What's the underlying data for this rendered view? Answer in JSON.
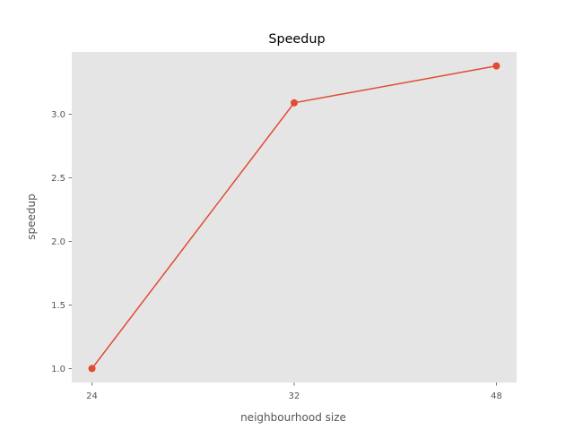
{
  "chart_data": {
    "type": "line",
    "title": "Speedup",
    "xlabel": "neighbourhood size",
    "ylabel": "speedup",
    "categories": [
      "24",
      "32",
      "48"
    ],
    "series": [
      {
        "values": [
          1.0,
          3.09,
          3.38
        ],
        "color": "#E24A33",
        "marker": "circle"
      }
    ],
    "ylim": [
      0.89,
      3.49
    ],
    "yticks": [
      1.0,
      1.5,
      2.0,
      2.5,
      3.0
    ],
    "ytick_labels": [
      "1.0",
      "1.5",
      "2.0",
      "2.5",
      "3.0"
    ],
    "grid": false,
    "plot_background": "#E5E5E5"
  }
}
